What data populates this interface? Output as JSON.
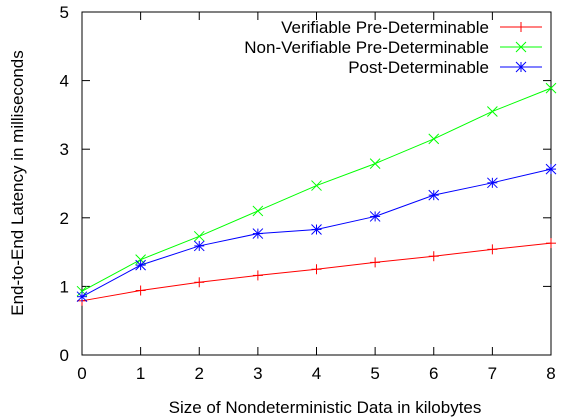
{
  "chart_data": {
    "type": "line",
    "xlabel": "Size of Nondeterministic Data in kilobytes",
    "ylabel": "End-to-End Latency in milliseconds",
    "xlim": [
      0,
      8
    ],
    "ylim": [
      0,
      5
    ],
    "xticks": [
      "0",
      "1",
      "2",
      "3",
      "4",
      "5",
      "6",
      "7",
      "8"
    ],
    "yticks": [
      "0",
      "1",
      "2",
      "3",
      "4",
      "5"
    ],
    "grid": false,
    "legend_position": "top-right",
    "x": [
      0,
      1,
      2,
      3,
      4,
      5,
      6,
      7,
      8
    ],
    "series": [
      {
        "name": "Verifiable Pre-Determinable",
        "color": "#ff0000",
        "marker": "plus",
        "values": [
          0.79,
          0.94,
          1.06,
          1.16,
          1.25,
          1.35,
          1.44,
          1.54,
          1.63
        ]
      },
      {
        "name": "Non-Verifiable Pre-Determinable",
        "color": "#00ff00",
        "marker": "cross",
        "values": [
          0.93,
          1.39,
          1.73,
          2.1,
          2.47,
          2.79,
          3.15,
          3.55,
          3.89
        ]
      },
      {
        "name": "Post-Determinable",
        "color": "#0000ff",
        "marker": "star",
        "values": [
          0.85,
          1.31,
          1.59,
          1.77,
          1.83,
          2.02,
          2.33,
          2.51,
          2.71
        ]
      }
    ]
  }
}
